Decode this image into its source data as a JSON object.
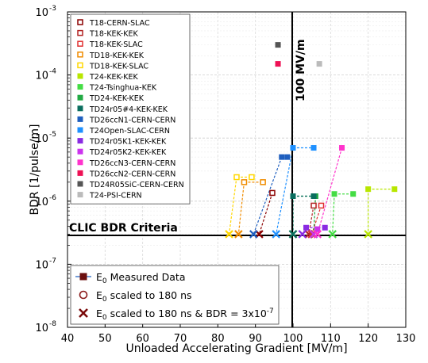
{
  "chart_data": {
    "type": "scatter",
    "xlabel": "Unloaded Accelerating Gradient [MV/m]",
    "ylabel": "BDR [1/pulse/m]",
    "xlim": [
      40,
      130
    ],
    "ylog_range": [
      -8,
      -3
    ],
    "x_ticks": [
      "40",
      "50",
      "60",
      "70",
      "80",
      "90",
      "100",
      "110",
      "120",
      "130"
    ],
    "y_ticks": [
      {
        "exp": -8,
        "base": "10",
        "sup": "-8"
      },
      {
        "exp": -7,
        "base": "10",
        "sup": "-7"
      },
      {
        "exp": -6,
        "base": "10",
        "sup": "-6"
      },
      {
        "exp": -5,
        "base": "10",
        "sup": "-5"
      },
      {
        "exp": -4,
        "base": "10",
        "sup": "-4"
      },
      {
        "exp": -3,
        "base": "10",
        "sup": "-3"
      }
    ],
    "grid": true,
    "legend_position": "top-left",
    "reference_lines": {
      "vertical": {
        "x": 100,
        "label": "100 MV/m"
      },
      "horizontal": {
        "y": 3e-07,
        "label": "CLIC BDR Criteria"
      }
    },
    "series": [
      {
        "name": "T18-CERN-SLAC",
        "color": "#8b0000",
        "open": true,
        "measured": [],
        "scaled": [
          [
            94.5,
            1.35e-06
          ]
        ],
        "final": [
          [
            91,
            3e-07
          ]
        ]
      },
      {
        "name": "T18-KEK-KEK",
        "color": "#b22222",
        "open": true,
        "measured": [],
        "scaled": [
          [
            105.5,
            8.5e-07
          ]
        ],
        "final": [
          [
            104.2,
            3e-07
          ]
        ]
      },
      {
        "name": "T18-KEK-SLAC",
        "color": "#e03030",
        "open": true,
        "measured": [],
        "scaled": [
          [
            107.5,
            8.5e-07
          ]
        ],
        "final": [
          [
            105,
            3e-07
          ]
        ]
      },
      {
        "name": "TD18-KEK-KEK",
        "color": "#f08c00",
        "open": true,
        "measured": [],
        "scaled": [
          [
            87,
            2e-06
          ],
          [
            92,
            2e-06
          ]
        ],
        "final": [
          [
            85.5,
            3e-07
          ]
        ]
      },
      {
        "name": "TD18-KEK-SLAC",
        "color": "#ffd700",
        "open": true,
        "measured": [],
        "scaled": [
          [
            85,
            2.4e-06
          ],
          [
            89,
            2.4e-06
          ]
        ],
        "final": [
          [
            83,
            3e-07
          ]
        ]
      },
      {
        "name": "T24-KEK-KEK",
        "color": "#b8e600",
        "open": false,
        "measured": [
          [
            120,
            1.55e-06
          ],
          [
            127,
            1.55e-06
          ]
        ],
        "scaled": [],
        "final": [
          [
            120,
            3e-07
          ]
        ]
      },
      {
        "name": "T24-Tsinghua-KEK",
        "color": "#44dd44",
        "open": false,
        "measured": [
          [
            111,
            1.3e-06
          ],
          [
            116,
            1.3e-06
          ]
        ],
        "scaled": [],
        "final": [
          [
            110.5,
            3e-07
          ]
        ]
      },
      {
        "name": "TD24-KEK-KEK",
        "color": "#22aa44",
        "open": false,
        "measured": [
          [
            100,
            1.2e-06
          ],
          [
            106,
            1.2e-06
          ]
        ],
        "scaled": [],
        "final": [
          [
            100,
            3e-07
          ],
          [
            105.5,
            3e-07
          ]
        ]
      },
      {
        "name": "TD24r05#4-KEK-KEK",
        "color": "#0b6e5f",
        "open": false,
        "measured": [
          [
            100,
            1.2e-06
          ],
          [
            105.5,
            1.2e-06
          ]
        ],
        "scaled": [],
        "final": [
          [
            100,
            3e-07
          ]
        ]
      },
      {
        "name": "TD26ccN1-CERN-CERN",
        "color": "#1f5fbf",
        "open": false,
        "measured": [
          [
            97,
            5e-06
          ],
          [
            98.5,
            5e-06
          ]
        ],
        "scaled": [],
        "final": [
          [
            89.5,
            3e-07
          ]
        ]
      },
      {
        "name": "T24Open-SLAC-CERN",
        "color": "#1e90ff",
        "open": false,
        "measured": [
          [
            100,
            7e-06
          ],
          [
            105.5,
            7e-06
          ]
        ],
        "scaled": [],
        "final": [
          [
            95.5,
            3e-07
          ]
        ]
      },
      {
        "name": "TD24r05K1-KEK-KEK",
        "color": "#8a2be2",
        "open": false,
        "measured": [
          [
            103.5,
            3.8e-07
          ],
          [
            108.5,
            3.8e-07
          ]
        ],
        "scaled": [],
        "final": [
          [
            102.5,
            3e-07
          ]
        ]
      },
      {
        "name": "TD24r05K2-KEK-KEK",
        "color": "#cc33ee",
        "open": false,
        "measured": [
          [
            106.5,
            3.6e-07
          ]
        ],
        "scaled": [],
        "final": [
          [
            105.5,
            3e-07
          ]
        ]
      },
      {
        "name": "TD26ccN3-CERN-CERN",
        "color": "#ff33cc",
        "open": false,
        "measured": [
          [
            113,
            7e-06
          ]
        ],
        "scaled": [],
        "final": [
          [
            106.5,
            3e-07
          ]
        ]
      },
      {
        "name": "TD26ccN2-CERN-CERN",
        "color": "#ee1155",
        "open": false,
        "measured": [
          [
            96,
            0.00015
          ]
        ],
        "scaled": [],
        "final": []
      },
      {
        "name": "TD24R05SiC-CERN-CERN",
        "color": "#555555",
        "open": false,
        "measured": [
          [
            96,
            0.0003
          ]
        ],
        "scaled": [],
        "final": []
      },
      {
        "name": "T24-PSI-CERN",
        "color": "#bbbbbb",
        "open": false,
        "measured": [
          [
            107,
            0.00015
          ]
        ],
        "scaled": [],
        "final": []
      }
    ],
    "legend2": [
      {
        "marker": "line-square",
        "label": "E0 Measured Data",
        "base": "E",
        "sub": "0",
        "rest": " Measured Data"
      },
      {
        "marker": "open-circle",
        "label": "E0 scaled to 180 ns",
        "base": "E",
        "sub": "0",
        "rest": " scaled to 180 ns"
      },
      {
        "marker": "x",
        "label": "E0 scaled to 180 ns & BDR = 3x10-7",
        "base": "E",
        "sub": "0",
        "rest": " scaled to 180 ns & BDR = 3x10",
        "sup": "-7"
      }
    ]
  }
}
